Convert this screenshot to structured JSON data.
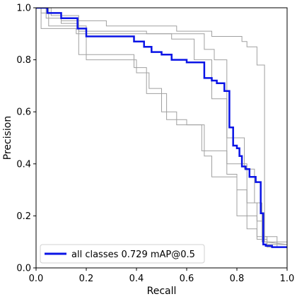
{
  "chart_data": {
    "type": "line",
    "title": "",
    "xlabel": "Recall",
    "ylabel": "Precision",
    "xlim": [
      0,
      1
    ],
    "ylim": [
      0,
      1
    ],
    "xticks": [
      "0.0",
      "0.2",
      "0.4",
      "0.6",
      "0.8",
      "1.0"
    ],
    "yticks": [
      "0.0",
      "0.2",
      "0.4",
      "0.6",
      "0.8",
      "1.0"
    ],
    "grid": false,
    "legend_position": "bottom-left",
    "colors": {
      "main": "#0a14e6",
      "class": "#a0a0a0"
    },
    "series": [
      {
        "x": [
          0,
          0.04,
          0.04,
          0.1,
          0.1,
          0.28,
          0.28,
          0.56,
          0.56,
          0.7,
          0.7,
          0.82,
          0.82,
          0.84,
          0.84,
          0.88,
          0.88,
          0.91,
          0.91,
          1.0
        ],
        "y": [
          1.0,
          1.0,
          0.96,
          0.96,
          0.95,
          0.95,
          0.93,
          0.93,
          0.91,
          0.91,
          0.89,
          0.89,
          0.87,
          0.87,
          0.85,
          0.85,
          0.78,
          0.78,
          0.1,
          0.09
        ]
      },
      {
        "x": [
          0,
          0.02,
          0.02,
          0.1,
          0.1,
          0.17,
          0.17,
          0.44,
          0.44,
          0.67,
          0.67,
          0.71,
          0.71,
          0.76,
          0.76,
          0.83,
          0.83,
          0.87,
          0.87,
          0.9,
          0.9,
          0.96,
          0.96,
          1.0
        ],
        "y": [
          1.0,
          1.0,
          0.98,
          0.98,
          0.94,
          0.94,
          0.91,
          0.91,
          0.9,
          0.9,
          0.84,
          0.84,
          0.8,
          0.8,
          0.5,
          0.5,
          0.38,
          0.38,
          0.25,
          0.25,
          0.12,
          0.12,
          0.08,
          0.08
        ]
      },
      {
        "x": [
          0,
          0.02,
          0.02,
          0.16,
          0.16,
          0.2,
          0.2,
          0.54,
          0.54,
          0.63,
          0.63,
          0.7,
          0.7,
          0.76,
          0.76,
          0.84,
          0.84,
          0.88,
          0.88,
          0.9,
          0.9,
          1.0
        ],
        "y": [
          1.0,
          1.0,
          0.92,
          0.92,
          0.9,
          0.9,
          0.9,
          0.9,
          0.88,
          0.88,
          0.8,
          0.8,
          0.65,
          0.65,
          0.4,
          0.4,
          0.25,
          0.25,
          0.18,
          0.18,
          0.1,
          0.1
        ]
      },
      {
        "x": [
          0,
          0.05,
          0.05,
          0.2,
          0.2,
          0.4,
          0.4,
          0.45,
          0.45,
          0.5,
          0.5,
          0.56,
          0.56,
          0.66,
          0.66,
          0.76,
          0.76,
          0.8,
          0.8,
          0.84,
          0.84,
          0.88,
          0.88,
          0.92,
          0.92,
          1.0
        ],
        "y": [
          1.0,
          1.0,
          0.93,
          0.93,
          0.8,
          0.8,
          0.75,
          0.75,
          0.69,
          0.69,
          0.6,
          0.6,
          0.55,
          0.55,
          0.45,
          0.45,
          0.36,
          0.36,
          0.3,
          0.3,
          0.2,
          0.2,
          0.12,
          0.12,
          0.09,
          0.09
        ]
      },
      {
        "x": [
          0,
          0.06,
          0.06,
          0.17,
          0.17,
          0.39,
          0.39,
          0.44,
          0.44,
          0.52,
          0.52,
          0.6,
          0.6,
          0.67,
          0.67,
          0.7,
          0.7,
          0.8,
          0.8,
          0.84,
          0.84,
          0.88,
          0.88,
          0.92,
          0.92,
          1.0
        ],
        "y": [
          1.0,
          1.0,
          0.97,
          0.97,
          0.82,
          0.82,
          0.77,
          0.77,
          0.67,
          0.67,
          0.57,
          0.57,
          0.55,
          0.55,
          0.43,
          0.43,
          0.35,
          0.35,
          0.2,
          0.2,
          0.15,
          0.15,
          0.11,
          0.11,
          0.08,
          0.08
        ]
      },
      {
        "name": "all classes 0.729 mAP@0.5",
        "x": [
          0,
          0.045,
          0.045,
          0.1,
          0.1,
          0.13,
          0.13,
          0.165,
          0.165,
          0.2,
          0.2,
          0.39,
          0.39,
          0.43,
          0.43,
          0.46,
          0.46,
          0.5,
          0.5,
          0.54,
          0.54,
          0.6,
          0.6,
          0.67,
          0.67,
          0.7,
          0.7,
          0.72,
          0.72,
          0.75,
          0.75,
          0.77,
          0.77,
          0.785,
          0.785,
          0.8,
          0.8,
          0.81,
          0.81,
          0.82,
          0.82,
          0.835,
          0.835,
          0.85,
          0.85,
          0.875,
          0.875,
          0.895,
          0.895,
          0.905,
          0.905,
          0.915,
          0.915,
          0.94,
          0.94,
          1.0
        ],
        "y": [
          1.0,
          1.0,
          0.98,
          0.98,
          0.96,
          0.96,
          0.96,
          0.96,
          0.92,
          0.92,
          0.89,
          0.89,
          0.87,
          0.87,
          0.85,
          0.85,
          0.83,
          0.83,
          0.82,
          0.82,
          0.8,
          0.8,
          0.79,
          0.79,
          0.73,
          0.73,
          0.72,
          0.72,
          0.71,
          0.71,
          0.68,
          0.68,
          0.54,
          0.54,
          0.47,
          0.47,
          0.46,
          0.46,
          0.43,
          0.43,
          0.39,
          0.39,
          0.38,
          0.38,
          0.35,
          0.35,
          0.33,
          0.33,
          0.21,
          0.21,
          0.09,
          0.09,
          0.085,
          0.085,
          0.08,
          0.08
        ]
      }
    ]
  }
}
